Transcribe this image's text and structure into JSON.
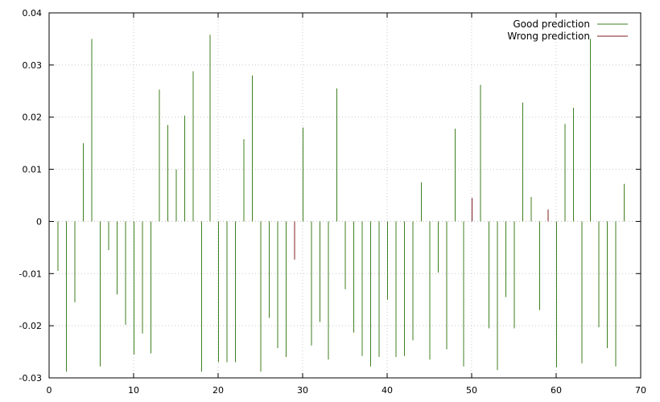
{
  "chart_data": {
    "type": "bar",
    "style": "impulses",
    "xlim": [
      0,
      70
    ],
    "ylim": [
      -0.03,
      0.04
    ],
    "x_ticks": [
      0,
      10,
      20,
      30,
      40,
      50,
      60,
      70
    ],
    "y_ticks": [
      -0.03,
      -0.02,
      -0.01,
      0,
      0.01,
      0.02,
      0.03,
      0.04
    ],
    "x_tick_labels": [
      "0",
      "10",
      "20",
      "30",
      "40",
      "50",
      "60",
      "70"
    ],
    "y_tick_labels": [
      "-0.03",
      "-0.02",
      "-0.01",
      "0",
      "0.01",
      "0.02",
      "0.03",
      "0.04"
    ],
    "grid": true,
    "legend_position": "top-right",
    "series": [
      {
        "name": "Good prediction",
        "color": "#3f7f1f",
        "points": [
          [
            1,
            -0.0095
          ],
          [
            2,
            -0.0288
          ],
          [
            3,
            -0.0155
          ],
          [
            4,
            0.015
          ],
          [
            5,
            0.035
          ],
          [
            6,
            -0.0278
          ],
          [
            7,
            -0.0055
          ],
          [
            8,
            -0.014
          ],
          [
            9,
            -0.0198
          ],
          [
            10,
            -0.0255
          ],
          [
            11,
            -0.0215
          ],
          [
            12,
            -0.0253
          ],
          [
            13,
            0.0253
          ],
          [
            14,
            0.0185
          ],
          [
            15,
            0.01
          ],
          [
            16,
            0.0203
          ],
          [
            17,
            0.0288
          ],
          [
            18,
            -0.0288
          ],
          [
            19,
            0.0358
          ],
          [
            20,
            -0.027
          ],
          [
            21,
            -0.027
          ],
          [
            22,
            -0.027
          ],
          [
            23,
            0.0158
          ],
          [
            24,
            0.028
          ],
          [
            25,
            -0.0288
          ],
          [
            26,
            -0.0185
          ],
          [
            27,
            -0.0243
          ],
          [
            28,
            -0.026
          ],
          [
            30,
            0.018
          ],
          [
            31,
            -0.0238
          ],
          [
            32,
            -0.0193
          ],
          [
            33,
            -0.0265
          ],
          [
            34,
            0.0255
          ],
          [
            35,
            -0.013
          ],
          [
            36,
            -0.0213
          ],
          [
            37,
            -0.0258
          ],
          [
            38,
            -0.0278
          ],
          [
            39,
            -0.026
          ],
          [
            40,
            -0.015
          ],
          [
            41,
            -0.026
          ],
          [
            42,
            -0.0258
          ],
          [
            43,
            -0.0228
          ],
          [
            44,
            0.0075
          ],
          [
            45,
            -0.0265
          ],
          [
            46,
            -0.0098
          ],
          [
            47,
            -0.0245
          ],
          [
            48,
            0.0178
          ],
          [
            49,
            -0.0278
          ],
          [
            51,
            0.0262
          ],
          [
            52,
            -0.0205
          ],
          [
            53,
            -0.0285
          ],
          [
            54,
            -0.0145
          ],
          [
            55,
            -0.0205
          ],
          [
            56,
            0.0228
          ],
          [
            57,
            0.0047
          ],
          [
            58,
            -0.017
          ],
          [
            60,
            -0.028
          ],
          [
            61,
            0.0187
          ],
          [
            62,
            0.0218
          ],
          [
            63,
            -0.0272
          ],
          [
            64,
            0.035
          ],
          [
            65,
            -0.0203
          ],
          [
            66,
            -0.0243
          ],
          [
            67,
            -0.0278
          ],
          [
            68,
            0.0072
          ]
        ]
      },
      {
        "name": "Wrong prediction",
        "color": "#7f1f1f",
        "points": [
          [
            29,
            -0.0073
          ],
          [
            50,
            0.0045
          ],
          [
            59,
            0.0023
          ]
        ]
      }
    ]
  }
}
